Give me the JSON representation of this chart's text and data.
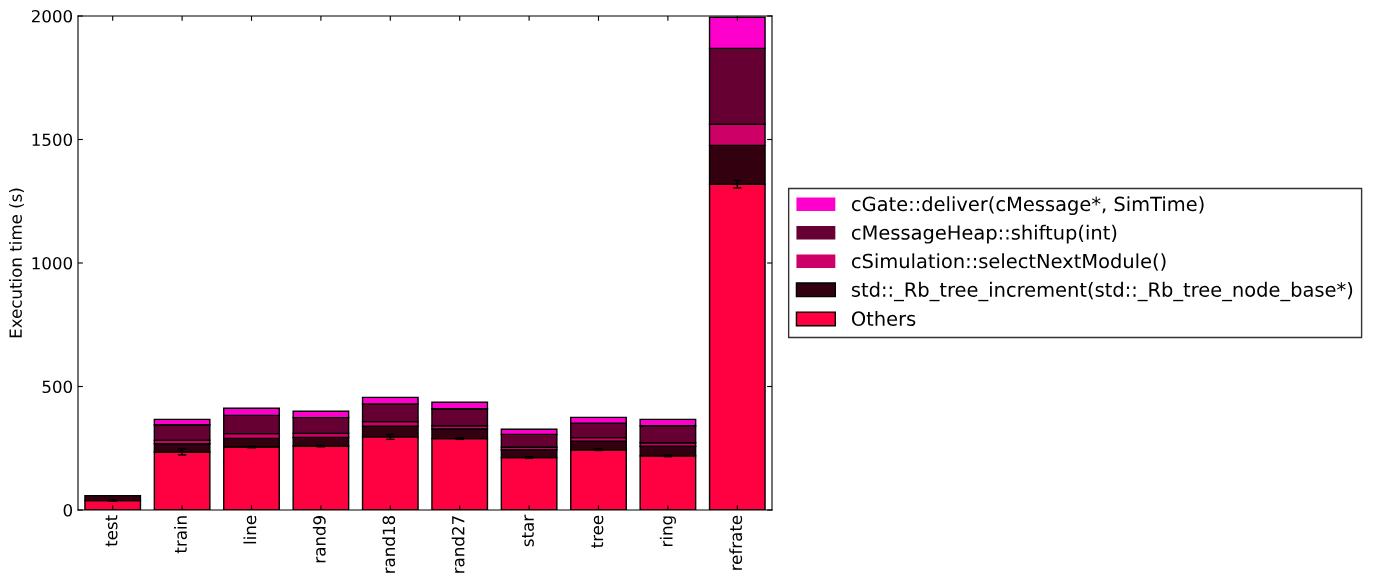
{
  "chart_data": {
    "type": "bar",
    "stacked": true,
    "ylabel": "Execution time (s)",
    "categories": [
      "test",
      "train",
      "line",
      "rand9",
      "rand18",
      "rand27",
      "star",
      "tree",
      "ring",
      "refrate"
    ],
    "series": [
      {
        "name": "Others",
        "color": "#ff0040",
        "values": [
          38,
          235,
          255,
          259,
          296,
          289,
          212,
          244,
          219,
          1319
        ],
        "errors": [
          2,
          12,
          3,
          3,
          10,
          3,
          3,
          3,
          3,
          15
        ]
      },
      {
        "name": "std::_Rb_tree_increment(std::_Rb_tree_node_base*)",
        "color": "#330010",
        "values": [
          20,
          33,
          35,
          35,
          43,
          39,
          32,
          35,
          39,
          157
        ]
      },
      {
        "name": "cSimulation::selectNextModule()",
        "color": "#cc0066",
        "values": [
          0,
          15,
          19,
          16,
          19,
          13,
          10,
          14,
          14,
          86
        ]
      },
      {
        "name": "cMessageHeap::shiftup(int)",
        "color": "#660033",
        "values": [
          0,
          62,
          74,
          64,
          71,
          69,
          52,
          58,
          69,
          307
        ]
      },
      {
        "name": "cGate::deliver(cMessage*, SimTime)",
        "color": "#ff00cc",
        "values": [
          0,
          22,
          29,
          26,
          27,
          26,
          21,
          24,
          26,
          126
        ]
      }
    ],
    "ylim": [
      0,
      2000
    ],
    "yticks": [
      0,
      500,
      1000,
      1500,
      2000
    ],
    "grid": false,
    "legend": "right"
  }
}
